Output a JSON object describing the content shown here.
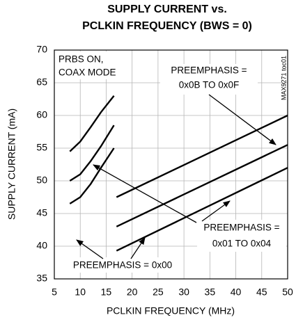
{
  "chart_data": {
    "type": "line",
    "title": [
      "SUPPLY CURRENT vs.",
      "PCLKIN FREQUENCY (BWS = 0)"
    ],
    "x_label": "PCLKIN FREQUENCY (MHz)",
    "y_label": "SUPPLY CURRENT (mA)",
    "side_note": "MAX9271 toc01",
    "annotations": [
      "PRBS ON,",
      "COAX MODE",
      "PREEMPHASIS =",
      "0x0B TO 0x0F",
      "PREEMPHASIS =",
      "0x01 TO 0x04",
      "PREEMPHASIS = 0x00"
    ],
    "xlim": [
      5,
      50
    ],
    "xticks": [
      5,
      10,
      15,
      20,
      25,
      30,
      35,
      40,
      45,
      50
    ],
    "ylim": [
      35,
      70
    ],
    "yticks": [
      35,
      40,
      45,
      50,
      55,
      60,
      65,
      70
    ],
    "grid": true,
    "series": [
      {
        "color": "#000000",
        "x": [
          8,
          10,
          12,
          14,
          16.5
        ],
        "values": [
          54.5,
          56,
          58.2,
          60.5,
          63
        ]
      },
      {
        "color": "#000000",
        "x": [
          8,
          10,
          12,
          14,
          16.5
        ],
        "values": [
          50,
          51,
          53,
          55.3,
          58.5
        ]
      },
      {
        "color": "#000000",
        "x": [
          8,
          10,
          12,
          14,
          16.5
        ],
        "values": [
          46.5,
          47.5,
          49.5,
          52,
          55
        ]
      },
      {
        "color": "#000000",
        "x": [
          17,
          50
        ],
        "values": [
          47.5,
          60
        ]
      },
      {
        "color": "#000000",
        "x": [
          17,
          50
        ],
        "values": [
          43,
          55.5
        ]
      },
      {
        "color": "#000000",
        "x": [
          17,
          50
        ],
        "values": [
          39.3,
          52
        ]
      }
    ]
  }
}
